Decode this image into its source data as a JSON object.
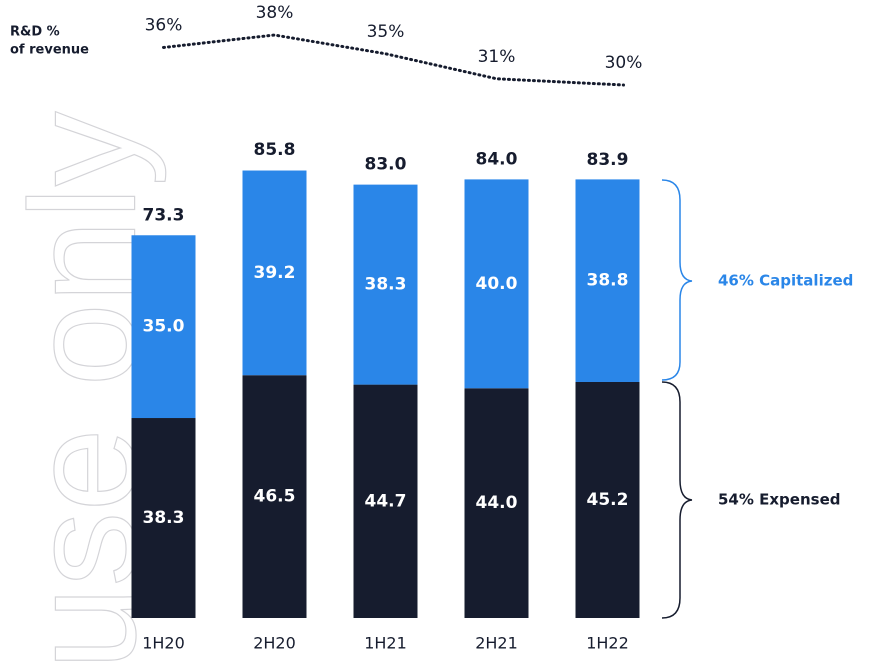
{
  "chart_data": {
    "type": "bar",
    "watermark": "use only",
    "line_label": [
      "R&D %",
      "of revenue"
    ],
    "categories": [
      "1H20",
      "2H20",
      "1H21",
      "2H21",
      "1H22"
    ],
    "series": [
      {
        "name": "54% Expensed",
        "color": "#161c2e",
        "values": [
          38.3,
          46.5,
          44.7,
          44.0,
          45.2
        ],
        "value_labels": [
          "38.3",
          "46.5",
          "44.7",
          "44.0",
          "45.2"
        ]
      },
      {
        "name": "46% Capitalized",
        "color": "#2a86e8",
        "values": [
          35.0,
          39.2,
          38.3,
          40.0,
          38.8
        ],
        "value_labels": [
          "35.0",
          "39.2",
          "38.3",
          "40.0",
          "38.8"
        ]
      }
    ],
    "totals": [
      73.3,
      85.8,
      83.0,
      84.0,
      83.9
    ],
    "total_labels": [
      "73.3",
      "85.8",
      "83.0",
      "84.0",
      "83.9"
    ],
    "rd_percent": {
      "values": [
        36,
        38,
        35,
        31,
        30
      ],
      "value_labels": [
        "36%",
        "38%",
        "35%",
        "31%",
        "30%"
      ],
      "color": "#161c2e"
    }
  }
}
